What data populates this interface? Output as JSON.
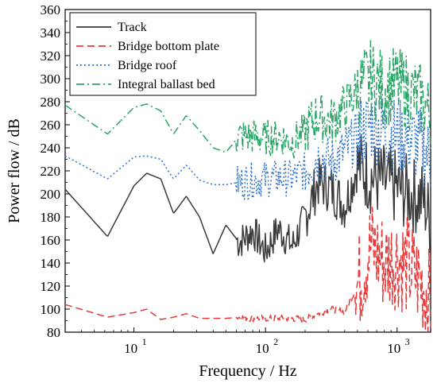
{
  "chart_data": {
    "type": "line",
    "xlabel": "Frequency / Hz",
    "ylabel": "Power flow / dB",
    "x_scale": "log",
    "xlim": [
      3,
      1800
    ],
    "ylim": [
      80,
      360
    ],
    "y_ticks": [
      80,
      100,
      120,
      140,
      160,
      180,
      200,
      220,
      240,
      260,
      280,
      300,
      320,
      340,
      360
    ],
    "x_ticks": [
      {
        "value": 10,
        "base": "10",
        "exp": "1"
      },
      {
        "value": 100,
        "base": "10",
        "exp": "2"
      },
      {
        "value": 1000,
        "base": "10",
        "exp": "3"
      }
    ],
    "grid": false,
    "legend_position": "top-left",
    "series": [
      {
        "name": "Track",
        "color": "#3a3a3a",
        "dash": "solid",
        "points": [
          [
            3,
            204
          ],
          [
            6.3,
            163
          ],
          [
            10,
            207
          ],
          [
            12.5,
            218
          ],
          [
            16,
            213
          ],
          [
            20,
            183
          ],
          [
            25,
            198
          ],
          [
            31.5,
            180
          ],
          [
            40,
            148
          ],
          [
            50,
            173
          ],
          [
            63,
            158
          ],
          [
            80,
            168
          ],
          [
            100,
            150
          ],
          [
            125,
            170
          ],
          [
            160,
            155
          ],
          [
            200,
            180
          ],
          [
            250,
            210
          ],
          [
            315,
            205
          ],
          [
            400,
            190
          ],
          [
            500,
            225
          ],
          [
            630,
            215
          ],
          [
            800,
            210
          ],
          [
            1000,
            205
          ],
          [
            1250,
            200
          ],
          [
            1600,
            195
          ],
          [
            1800,
            175
          ]
        ]
      },
      {
        "name": "Bridge bottom plate",
        "color": "#e8393a",
        "dash": "dashed",
        "points": [
          [
            3,
            104
          ],
          [
            6.3,
            93
          ],
          [
            10,
            97
          ],
          [
            12.5,
            100
          ],
          [
            16,
            91
          ],
          [
            20,
            93
          ],
          [
            25,
            96
          ],
          [
            31.5,
            92
          ],
          [
            40,
            92
          ],
          [
            50,
            92
          ],
          [
            63,
            93
          ],
          [
            80,
            92
          ],
          [
            100,
            92
          ],
          [
            125,
            92
          ],
          [
            160,
            92
          ],
          [
            200,
            91
          ],
          [
            250,
            96
          ],
          [
            315,
            100
          ],
          [
            400,
            98
          ],
          [
            500,
            120
          ],
          [
            630,
            155
          ],
          [
            800,
            140
          ],
          [
            1000,
            145
          ],
          [
            1250,
            135
          ],
          [
            1600,
            120
          ],
          [
            1800,
            105
          ]
        ]
      },
      {
        "name": "Bridge roof",
        "color": "#2e73d0",
        "dash": "dotted",
        "points": [
          [
            3,
            233
          ],
          [
            6.3,
            213
          ],
          [
            10,
            232
          ],
          [
            12.5,
            233
          ],
          [
            16,
            230
          ],
          [
            20,
            213
          ],
          [
            25,
            225
          ],
          [
            31.5,
            212
          ],
          [
            40,
            208
          ],
          [
            50,
            208
          ],
          [
            63,
            210
          ],
          [
            80,
            212
          ],
          [
            100,
            213
          ],
          [
            125,
            214
          ],
          [
            160,
            214
          ],
          [
            200,
            220
          ],
          [
            250,
            232
          ],
          [
            315,
            228
          ],
          [
            400,
            237
          ],
          [
            500,
            250
          ],
          [
            630,
            260
          ],
          [
            800,
            255
          ],
          [
            1000,
            250
          ],
          [
            1250,
            248
          ],
          [
            1600,
            240
          ],
          [
            1800,
            230
          ]
        ]
      },
      {
        "name": "Integral ballast bed",
        "color": "#2aa566",
        "dash": "dashdot",
        "points": [
          [
            3,
            277
          ],
          [
            6.3,
            252
          ],
          [
            10,
            275
          ],
          [
            12.5,
            278
          ],
          [
            16,
            272
          ],
          [
            20,
            252
          ],
          [
            25,
            268
          ],
          [
            31.5,
            255
          ],
          [
            40,
            240
          ],
          [
            50,
            236
          ],
          [
            63,
            250
          ],
          [
            80,
            250
          ],
          [
            100,
            248
          ],
          [
            125,
            250
          ],
          [
            160,
            245
          ],
          [
            200,
            255
          ],
          [
            250,
            268
          ],
          [
            315,
            262
          ],
          [
            400,
            275
          ],
          [
            500,
            290
          ],
          [
            630,
            300
          ],
          [
            800,
            290
          ],
          [
            1000,
            295
          ],
          [
            1250,
            288
          ],
          [
            1600,
            280
          ],
          [
            1800,
            265
          ]
        ]
      }
    ]
  }
}
